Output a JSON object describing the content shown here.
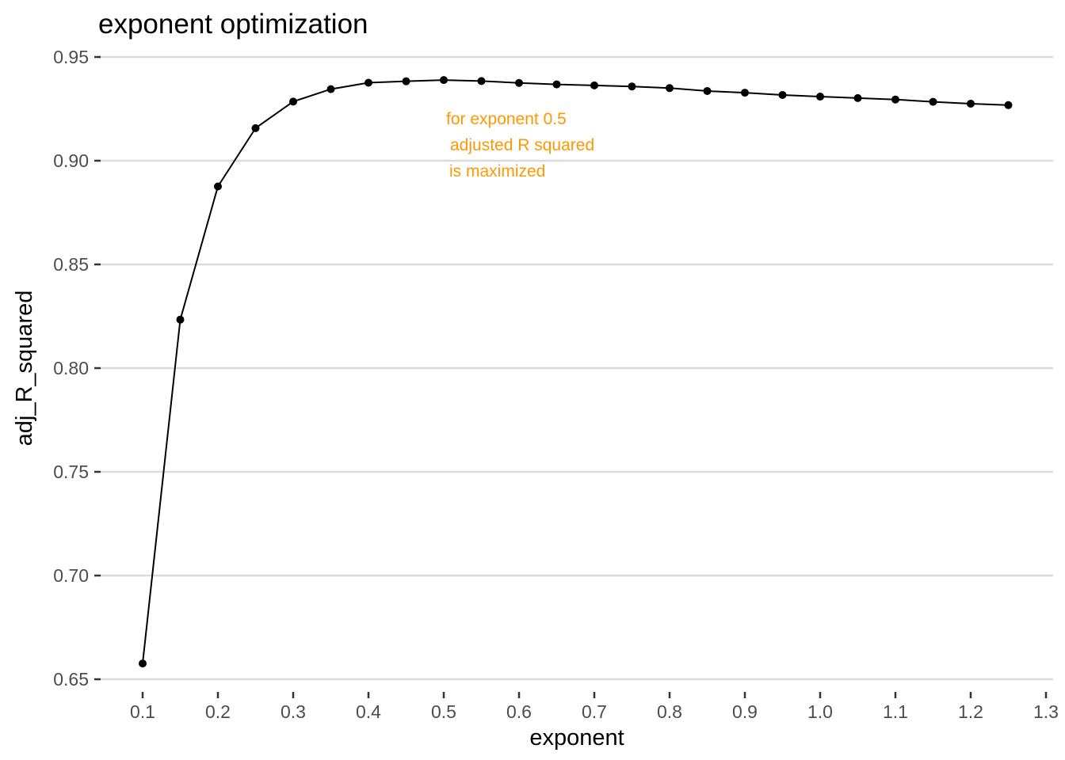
{
  "chart_data": {
    "type": "line",
    "title": "exponent optimization",
    "xlabel": "exponent",
    "ylabel": "adj_R_squared",
    "series": [
      {
        "name": "adj_R_squared",
        "x": [
          0.1,
          0.15,
          0.2,
          0.25,
          0.3,
          0.35,
          0.4,
          0.45,
          0.5,
          0.55,
          0.6,
          0.65,
          0.7,
          0.75,
          0.8,
          0.85,
          0.9,
          0.95,
          1.0,
          1.05,
          1.1,
          1.15,
          1.2,
          1.25
        ],
        "y": [
          0.6576,
          0.8234,
          0.8876,
          0.9157,
          0.9285,
          0.9345,
          0.9376,
          0.9383,
          0.9389,
          0.9384,
          0.9375,
          0.9368,
          0.9363,
          0.9358,
          0.935,
          0.9336,
          0.9328,
          0.9317,
          0.9309,
          0.9302,
          0.9295,
          0.9284,
          0.9275,
          0.9268
        ]
      }
    ],
    "x_ticks": [
      0.1,
      0.2,
      0.3,
      0.4,
      0.5,
      0.6,
      0.7,
      0.8,
      0.9,
      1.0,
      1.1,
      1.2,
      1.3
    ],
    "x_tick_labels": [
      "0.1",
      "0.2",
      "0.3",
      "0.4",
      "0.5",
      "0.6",
      "0.7",
      "0.8",
      "0.9",
      "1.0",
      "1.1",
      "1.2",
      "1.3"
    ],
    "y_ticks": [
      0.65,
      0.7,
      0.75,
      0.8,
      0.85,
      0.9,
      0.95
    ],
    "y_tick_labels": [
      "0.65",
      "0.70",
      "0.75",
      "0.80",
      "0.85",
      "0.90",
      "0.95"
    ],
    "xlim": [
      0.044,
      1.31
    ],
    "ylim": [
      0.643,
      0.953
    ],
    "grid": "horizontal-major-only",
    "legend": "none",
    "annotation": {
      "lines": [
        "for exponent 0.5",
        "adjusted R squared",
        "is maximized"
      ],
      "color": "#FF9800",
      "near_x": 0.55,
      "near_y": 0.92
    },
    "colors": {
      "line": "#000000",
      "point": "#000000",
      "grid": "#DBDBDB",
      "tick_mark": "#333333",
      "tick_label": "#4D4D4D",
      "title": "#000000",
      "axis_title": "#000000",
      "background": "#FFFFFF"
    }
  }
}
